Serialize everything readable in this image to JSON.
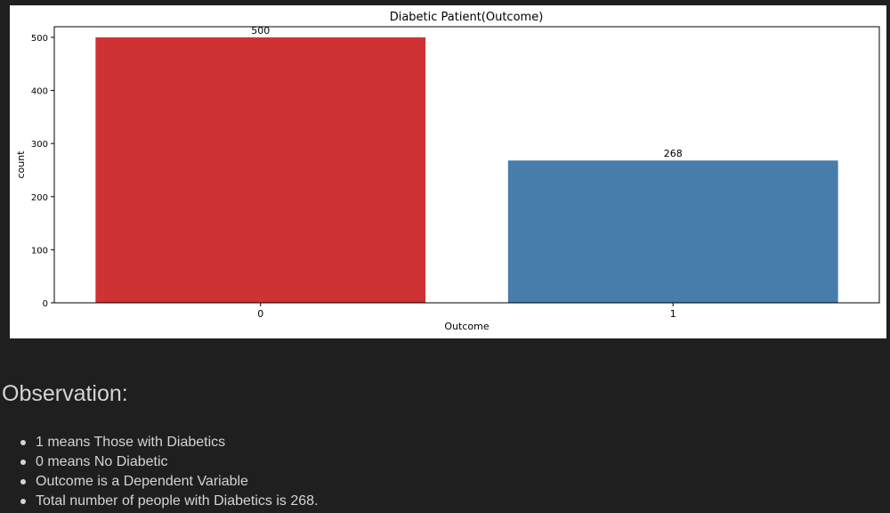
{
  "chart_data": {
    "type": "bar",
    "title": "Diabetic Patient(Outcome)",
    "xlabel": "Outcome",
    "ylabel": "count",
    "categories": [
      "0",
      "1"
    ],
    "values": [
      500,
      268
    ],
    "data_labels": [
      "500",
      "268"
    ],
    "colors": [
      "#cf3234",
      "#467dab"
    ],
    "ylim": [
      0,
      520
    ],
    "yticks": [
      0,
      100,
      200,
      300,
      400,
      500
    ],
    "grid": false,
    "legend": "none"
  },
  "observation": {
    "heading": "Observation:",
    "items": [
      "1 means Those with Diabetics",
      "0 means No Diabetic",
      "Outcome is a Dependent Variable",
      "Total number of people with Diabetics is 268."
    ]
  }
}
